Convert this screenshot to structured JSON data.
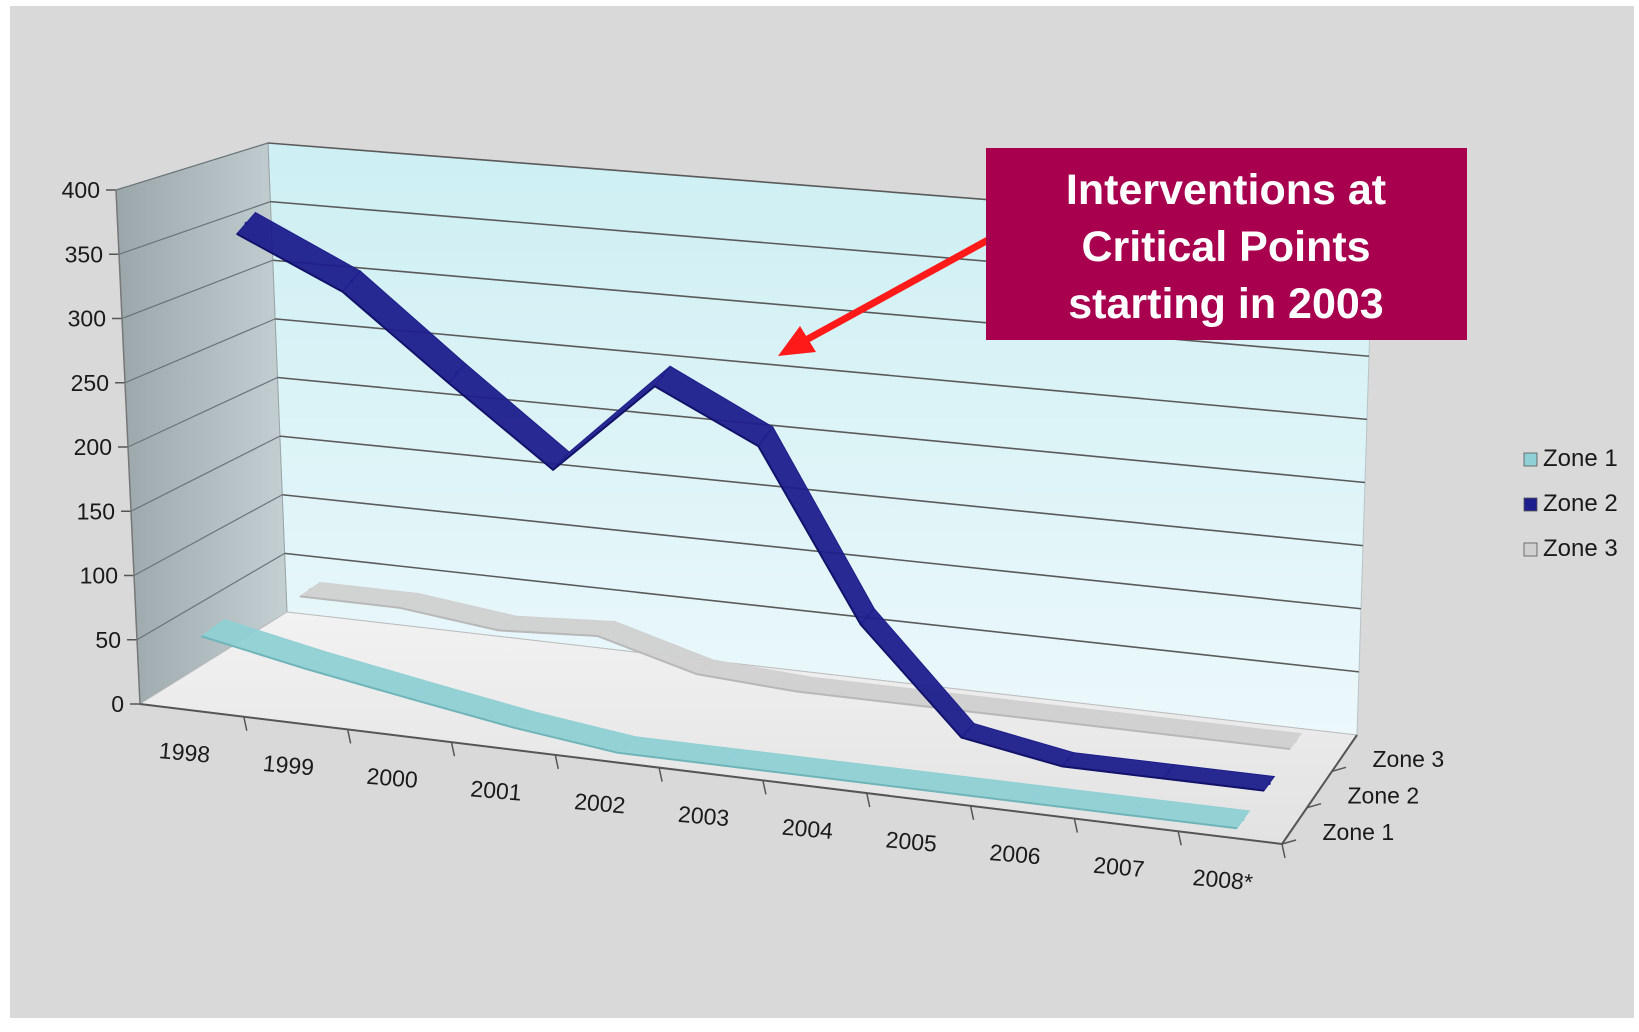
{
  "chart_data": {
    "type": "line",
    "subtype": "3d-line",
    "title": "",
    "xlabel": "",
    "ylabel": "",
    "categories": [
      "1998",
      "1999",
      "2000",
      "2001",
      "2002",
      "2003",
      "2004",
      "2005",
      "2006",
      "2007",
      "2008*"
    ],
    "ylim": [
      0,
      400
    ],
    "yticks": [
      "400",
      "350",
      "300",
      "250",
      "200",
      "150",
      "100",
      "50",
      "0"
    ],
    "depth_labels": [
      "Zone 3",
      "Zone 2",
      "Zone 1"
    ],
    "series": [
      {
        "name": "Zone 1",
        "color": "#8fd0d4",
        "values": [
          65,
          45,
          28,
          12,
          0,
          0,
          0,
          0,
          0,
          0,
          0
        ]
      },
      {
        "name": "Zone 2",
        "color": "#1e1e8c",
        "values": [
          405,
          360,
          285,
          215,
          300,
          255,
          105,
          15,
          0,
          0,
          0
        ]
      },
      {
        "name": "Zone 3",
        "color": "#d0d0d0",
        "values": [
          38,
          38,
          28,
          33,
          10,
          5,
          5,
          5,
          5,
          5,
          5
        ]
      }
    ],
    "legend_position": "right",
    "grid": true,
    "annotation": {
      "lines": [
        "Interventions at",
        "Critical Points",
        "starting in 2003"
      ],
      "box_color": "#a8004f",
      "arrow_color": "#ff1a1a"
    }
  }
}
